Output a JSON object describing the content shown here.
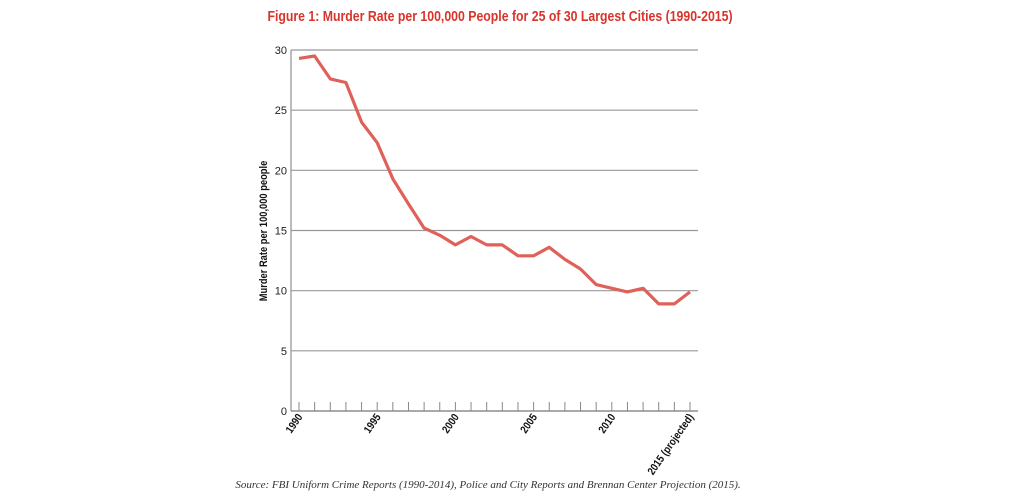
{
  "chart_data": {
    "type": "line",
    "title": "Figure 1: Murder Rate per 100,000 People for 25 of 30 Largest Cities (1990-2015)",
    "xlabel": "",
    "ylabel": "Murder Rate per 100,000 people",
    "ylim": [
      0,
      30
    ],
    "yticks": [
      "0",
      "5",
      "10",
      "15",
      "20",
      "25",
      "30"
    ],
    "xlim": [
      1990,
      2015
    ],
    "xtick_labels": [
      {
        "x": 1990,
        "label": "1990"
      },
      {
        "x": 1995,
        "label": "1995"
      },
      {
        "x": 2000,
        "label": "2000"
      },
      {
        "x": 2005,
        "label": "2005"
      },
      {
        "x": 2010,
        "label": "2010"
      },
      {
        "x": 2015,
        "label": "2015 (projected)"
      }
    ],
    "grid": true,
    "color": "#e0605a",
    "x": [
      1990,
      1991,
      1992,
      1993,
      1994,
      1995,
      1996,
      1997,
      1998,
      1999,
      2000,
      2001,
      2002,
      2003,
      2004,
      2005,
      2006,
      2007,
      2008,
      2009,
      2010,
      2011,
      2012,
      2013,
      2014,
      2015
    ],
    "values": [
      29.3,
      29.5,
      27.6,
      27.3,
      24.0,
      22.3,
      19.3,
      17.2,
      15.2,
      14.6,
      13.8,
      14.5,
      13.8,
      13.8,
      12.9,
      12.9,
      13.6,
      12.6,
      11.8,
      10.5,
      10.2,
      9.9,
      10.2,
      8.9,
      8.9,
      9.9
    ],
    "source": "Source: FBI Uniform Crime Reports (1990-2014), Police and City Reports and Brennan Center Projection (2015)."
  }
}
